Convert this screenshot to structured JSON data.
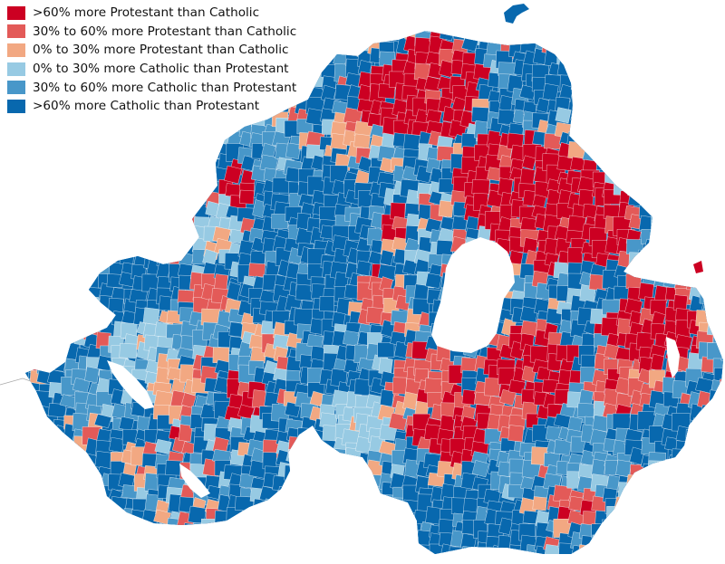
{
  "legend": [
    {
      "label": ">60% more Protestant than Catholic",
      "color": "#cc0022"
    },
    {
      "label": "30% to 60% more Protestant than Catholic",
      "color": "#e35a58"
    },
    {
      "label": "0% to 30% more Protestant than Catholic",
      "color": "#f2a882"
    },
    {
      "label": "0% to 30% more Catholic than Protestant",
      "color": "#97cae3"
    },
    {
      "label": "30% to 60% more Catholic than Protestant",
      "color": "#4897c9"
    },
    {
      "label": ">60% more Catholic than Protestant",
      "color": "#0868ae"
    }
  ],
  "colors": {
    "lake": "#ffffff",
    "neighbour_outline": "#a8a8a8",
    "boundary": "#ffffff"
  }
}
